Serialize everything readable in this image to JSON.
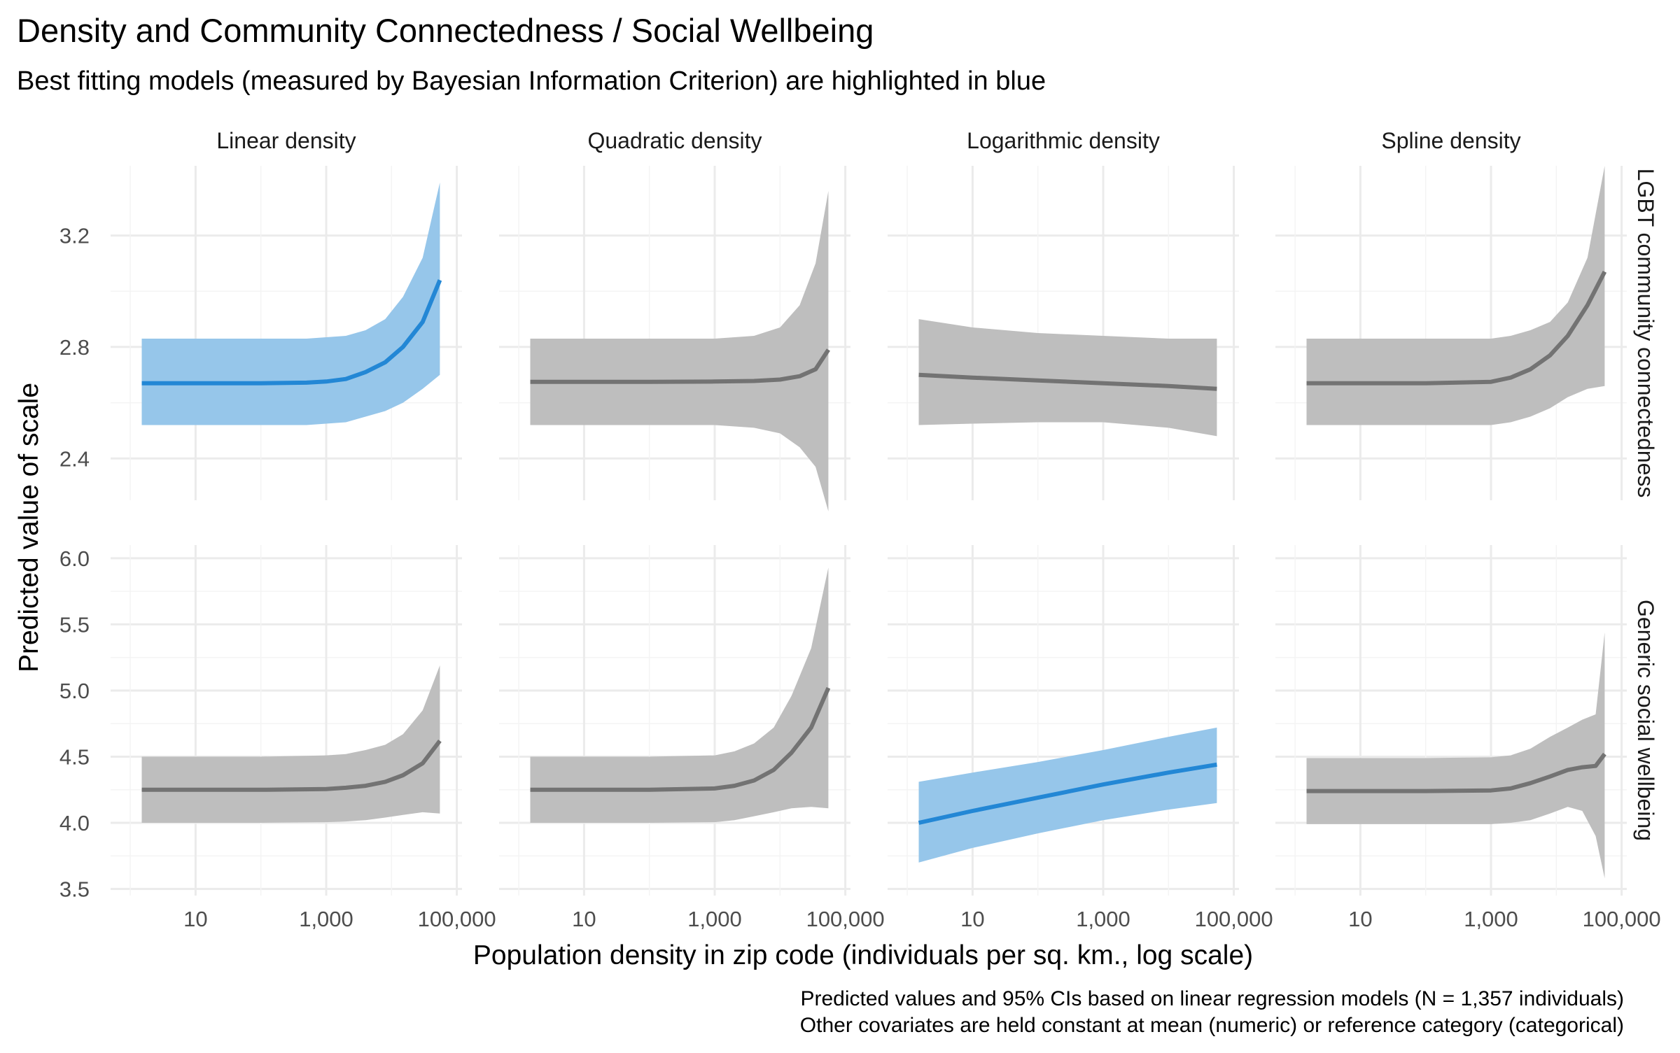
{
  "chart_data": {
    "type": "line",
    "title": "Density and Community Connectedness / Social Wellbeing",
    "subtitle": "Best fitting models (measured by Bayesian Information Criterion) are highlighted in blue",
    "xlabel": "Population density in zip code (individuals per sq. km., log scale)",
    "ylabel": "Predicted value of scale",
    "caption": [
      "Predicted values and 95% CIs based on linear regression models (N = 1,357 individuals)",
      "Other covariates are held constant at mean (numeric) or reference category (categorical)"
    ],
    "x_scale": "log",
    "x_lim": [
      0.5,
      120000
    ],
    "x_ticks": [
      10,
      1000,
      100000
    ],
    "x_tick_labels": [
      "10",
      "1,000",
      "100,000"
    ],
    "columns": [
      "Linear density",
      "Quadratic density",
      "Logarithmic density",
      "Spline density"
    ],
    "rows": [
      {
        "label": "LGBT community connectedness",
        "ylim": [
          2.25,
          3.45
        ],
        "y_ticks": [
          2.4,
          2.8,
          3.2
        ],
        "y_tick_labels": [
          "2.4",
          "2.8",
          "3.2"
        ]
      },
      {
        "label": "Generic social wellbeing",
        "ylim": [
          3.45,
          6.1
        ],
        "y_ticks": [
          3.5,
          4.0,
          4.5,
          5.0,
          5.5,
          6.0
        ],
        "y_tick_labels": [
          "3.5",
          "4.0",
          "4.5",
          "5.0",
          "5.5",
          "6.0"
        ]
      }
    ],
    "colors": {
      "best_line": "#2387d5",
      "best_ribbon": "#96c6ea",
      "other_line": "#737373",
      "other_ribbon": "#bebebe",
      "grid": "#ebebeb"
    },
    "panels": [
      {
        "row": 0,
        "col": 0,
        "best": true,
        "x": [
          1.5,
          10,
          100,
          500,
          1000,
          2000,
          4000,
          8000,
          15000,
          30000,
          55000
        ],
        "y": [
          2.67,
          2.67,
          2.67,
          2.672,
          2.676,
          2.685,
          2.71,
          2.745,
          2.8,
          2.89,
          3.04
        ],
        "lower": [
          2.52,
          2.52,
          2.52,
          2.52,
          2.525,
          2.53,
          2.55,
          2.57,
          2.6,
          2.65,
          2.7
        ],
        "upper": [
          2.83,
          2.83,
          2.83,
          2.83,
          2.835,
          2.84,
          2.86,
          2.9,
          2.98,
          3.12,
          3.39
        ]
      },
      {
        "row": 0,
        "col": 1,
        "best": false,
        "x": [
          1.5,
          10,
          100,
          1000,
          4000,
          10000,
          20000,
          35000,
          55000
        ],
        "y": [
          2.675,
          2.675,
          2.675,
          2.676,
          2.678,
          2.683,
          2.695,
          2.72,
          2.79
        ],
        "lower": [
          2.52,
          2.52,
          2.52,
          2.52,
          2.51,
          2.49,
          2.44,
          2.37,
          2.21
        ],
        "upper": [
          2.83,
          2.83,
          2.83,
          2.83,
          2.84,
          2.87,
          2.95,
          3.1,
          3.36
        ]
      },
      {
        "row": 0,
        "col": 2,
        "best": false,
        "x": [
          1.5,
          10,
          100,
          1000,
          10000,
          55000
        ],
        "y": [
          2.7,
          2.69,
          2.68,
          2.67,
          2.66,
          2.65
        ],
        "lower": [
          2.52,
          2.525,
          2.53,
          2.53,
          2.51,
          2.48
        ],
        "upper": [
          2.9,
          2.87,
          2.85,
          2.84,
          2.83,
          2.83
        ]
      },
      {
        "row": 0,
        "col": 3,
        "best": false,
        "x": [
          1.5,
          10,
          100,
          1000,
          2000,
          4000,
          8000,
          15000,
          30000,
          55000
        ],
        "y": [
          2.67,
          2.67,
          2.67,
          2.675,
          2.69,
          2.72,
          2.77,
          2.84,
          2.95,
          3.07
        ],
        "lower": [
          2.52,
          2.52,
          2.52,
          2.52,
          2.53,
          2.55,
          2.58,
          2.62,
          2.65,
          2.66
        ],
        "upper": [
          2.83,
          2.83,
          2.83,
          2.83,
          2.84,
          2.86,
          2.89,
          2.96,
          3.12,
          3.45
        ]
      },
      {
        "row": 1,
        "col": 0,
        "best": false,
        "x": [
          1.5,
          10,
          100,
          1000,
          2000,
          4000,
          8000,
          15000,
          30000,
          55000
        ],
        "y": [
          4.25,
          4.25,
          4.25,
          4.255,
          4.265,
          4.28,
          4.31,
          4.36,
          4.45,
          4.62
        ],
        "lower": [
          4.0,
          4.0,
          4.0,
          4.005,
          4.01,
          4.02,
          4.04,
          4.06,
          4.08,
          4.07
        ],
        "upper": [
          4.5,
          4.5,
          4.5,
          4.51,
          4.52,
          4.55,
          4.59,
          4.67,
          4.85,
          5.19
        ]
      },
      {
        "row": 1,
        "col": 1,
        "best": false,
        "x": [
          1.5,
          10,
          100,
          1000,
          2000,
          4000,
          8000,
          15000,
          30000,
          55000
        ],
        "y": [
          4.25,
          4.25,
          4.25,
          4.26,
          4.28,
          4.32,
          4.4,
          4.53,
          4.72,
          5.02
        ],
        "lower": [
          4.0,
          4.0,
          4.0,
          4.005,
          4.02,
          4.05,
          4.08,
          4.11,
          4.12,
          4.11
        ],
        "upper": [
          4.5,
          4.5,
          4.5,
          4.51,
          4.54,
          4.6,
          4.72,
          4.96,
          5.32,
          5.93
        ]
      },
      {
        "row": 1,
        "col": 2,
        "best": true,
        "x": [
          1.5,
          10,
          100,
          1000,
          10000,
          55000
        ],
        "y": [
          4.0,
          4.09,
          4.19,
          4.29,
          4.38,
          4.44
        ],
        "lower": [
          3.7,
          3.81,
          3.92,
          4.02,
          4.1,
          4.15
        ],
        "upper": [
          4.31,
          4.38,
          4.46,
          4.55,
          4.65,
          4.72
        ]
      },
      {
        "row": 1,
        "col": 3,
        "best": false,
        "x": [
          1.5,
          10,
          100,
          1000,
          2000,
          4000,
          8000,
          15000,
          25000,
          40000,
          55000
        ],
        "y": [
          4.24,
          4.24,
          4.24,
          4.245,
          4.26,
          4.3,
          4.35,
          4.4,
          4.42,
          4.43,
          4.52
        ],
        "lower": [
          3.99,
          3.99,
          3.99,
          3.99,
          4.0,
          4.02,
          4.07,
          4.12,
          4.09,
          3.9,
          3.58
        ],
        "upper": [
          4.49,
          4.49,
          4.49,
          4.495,
          4.51,
          4.56,
          4.65,
          4.72,
          4.78,
          4.82,
          5.44
        ]
      }
    ]
  }
}
